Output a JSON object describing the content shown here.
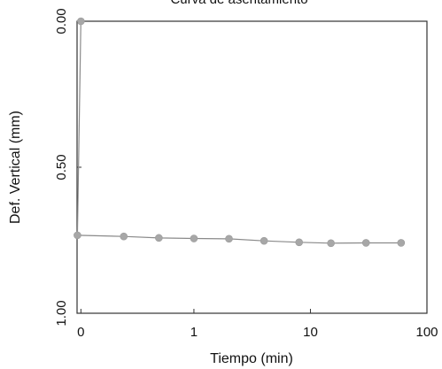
{
  "chart_data": {
    "type": "scatter",
    "title": "Curva de asentamiento",
    "xlabel": "Tiempo (min)",
    "ylabel": "Def. Vertical (mm)",
    "x_scale": "symlog",
    "y_inverted": true,
    "xlim": [
      0,
      100
    ],
    "ylim": [
      0,
      1.0
    ],
    "x_tick_labels": [
      "0",
      "1",
      "10",
      "100"
    ],
    "y_tick_labels": [
      "0.00",
      "0.50",
      "1.00"
    ],
    "grid": false,
    "series": [
      {
        "color": "#a7a7a7",
        "points": [
          {
            "x": 0,
            "y": 0.0
          },
          {
            "x": 0.1,
            "y": 0.733
          },
          {
            "x": 0.25,
            "y": 0.737
          },
          {
            "x": 0.5,
            "y": 0.742
          },
          {
            "x": 1,
            "y": 0.744
          },
          {
            "x": 2,
            "y": 0.745
          },
          {
            "x": 4,
            "y": 0.752
          },
          {
            "x": 8,
            "y": 0.757
          },
          {
            "x": 15,
            "y": 0.76
          },
          {
            "x": 30,
            "y": 0.759
          },
          {
            "x": 60,
            "y": 0.759
          }
        ]
      }
    ]
  }
}
